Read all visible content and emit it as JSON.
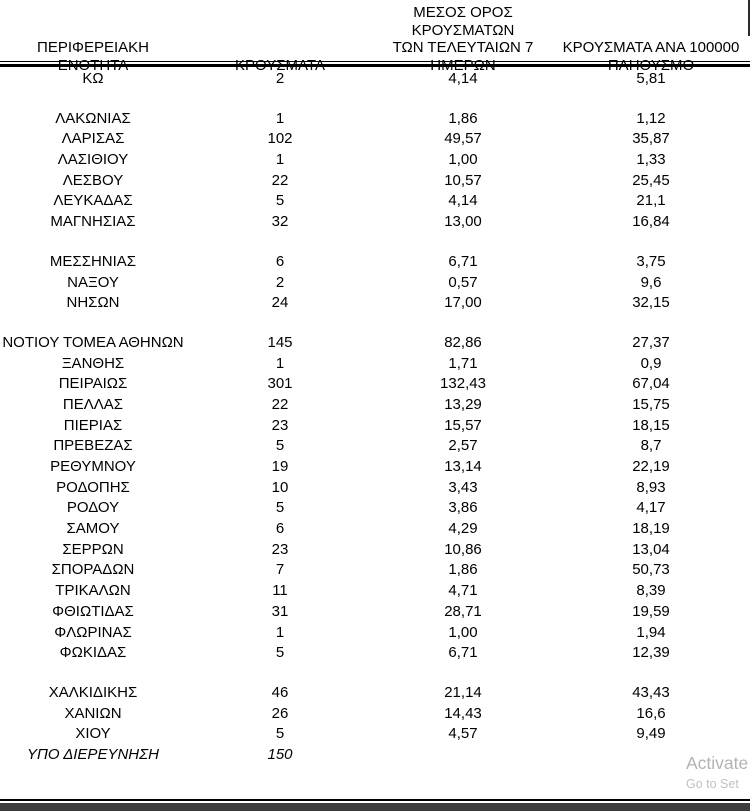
{
  "colors": {
    "text": "#000000",
    "rule": "#000000",
    "bottom_bar": "#3d3d3d",
    "watermark_primary": "#b3b3b3",
    "watermark_secondary": "#c1c1c1"
  },
  "table": {
    "headers": {
      "region": "ΠΕΡΙΦΕΡΕΙΑΚΗ ΕΝΟΤΗΤΑ",
      "cases": "ΚΡΟΥΣΜΑΤΑ",
      "avg7": "ΜΕΣΟΣ ΟΡΟΣ ΚΡΟΥΣΜΑΤΩΝ\nΤΩΝ ΤΕΛΕΥΤΑΙΩΝ 7\nΗΜΕΡΩΝ",
      "per100k": "ΚΡΟΥΣΜΑΤΑ ΑΝΑ 100000\nΠΛΗΘΥΣΜΟ"
    },
    "groups": [
      {
        "rows": [
          {
            "region": "ΚΩ",
            "cases": "2",
            "avg7": "4,14",
            "per100k": "5,81"
          }
        ]
      },
      {
        "rows": [
          {
            "region": "ΛΑΚΩΝΙΑΣ",
            "cases": "1",
            "avg7": "1,86",
            "per100k": "1,12"
          },
          {
            "region": "ΛΑΡΙΣΑΣ",
            "cases": "102",
            "avg7": "49,57",
            "per100k": "35,87"
          },
          {
            "region": "ΛΑΣΙΘΙΟΥ",
            "cases": "1",
            "avg7": "1,00",
            "per100k": "1,33"
          },
          {
            "region": "ΛΕΣΒΟΥ",
            "cases": "22",
            "avg7": "10,57",
            "per100k": "25,45"
          },
          {
            "region": "ΛΕΥΚΑΔΑΣ",
            "cases": "5",
            "avg7": "4,14",
            "per100k": "21,1"
          },
          {
            "region": "ΜΑΓΝΗΣΙΑΣ",
            "cases": "32",
            "avg7": "13,00",
            "per100k": "16,84"
          }
        ]
      },
      {
        "rows": [
          {
            "region": "ΜΕΣΣΗΝΙΑΣ",
            "cases": "6",
            "avg7": "6,71",
            "per100k": "3,75"
          },
          {
            "region": "ΝΑΞΟΥ",
            "cases": "2",
            "avg7": "0,57",
            "per100k": "9,6"
          },
          {
            "region": "ΝΗΣΩΝ",
            "cases": "24",
            "avg7": "17,00",
            "per100k": "32,15"
          }
        ]
      },
      {
        "rows": [
          {
            "region": "ΝΟΤΙΟΥ ΤΟΜΕΑ ΑΘΗΝΩΝ",
            "cases": "145",
            "avg7": "82,86",
            "per100k": "27,37"
          },
          {
            "region": "ΞΑΝΘΗΣ",
            "cases": "1",
            "avg7": "1,71",
            "per100k": "0,9"
          },
          {
            "region": "ΠΕΙΡΑΙΩΣ",
            "cases": "301",
            "avg7": "132,43",
            "per100k": "67,04"
          },
          {
            "region": "ΠΕΛΛΑΣ",
            "cases": "22",
            "avg7": "13,29",
            "per100k": "15,75"
          },
          {
            "region": "ΠΙΕΡΙΑΣ",
            "cases": "23",
            "avg7": "15,57",
            "per100k": "18,15"
          },
          {
            "region": "ΠΡΕΒΕΖΑΣ",
            "cases": "5",
            "avg7": "2,57",
            "per100k": "8,7"
          },
          {
            "region": "ΡΕΘΥΜΝΟΥ",
            "cases": "19",
            "avg7": "13,14",
            "per100k": "22,19"
          },
          {
            "region": "ΡΟΔΟΠΗΣ",
            "cases": "10",
            "avg7": "3,43",
            "per100k": "8,93"
          },
          {
            "region": "ΡΟΔΟΥ",
            "cases": "5",
            "avg7": "3,86",
            "per100k": "4,17"
          },
          {
            "region": "ΣΑΜΟΥ",
            "cases": "6",
            "avg7": "4,29",
            "per100k": "18,19"
          },
          {
            "region": "ΣΕΡΡΩΝ",
            "cases": "23",
            "avg7": "10,86",
            "per100k": "13,04"
          },
          {
            "region": "ΣΠΟΡΑΔΩΝ",
            "cases": "7",
            "avg7": "1,86",
            "per100k": "50,73"
          },
          {
            "region": "ΤΡΙΚΑΛΩΝ",
            "cases": "11",
            "avg7": "4,71",
            "per100k": "8,39"
          },
          {
            "region": "ΦΘΙΩΤΙΔΑΣ",
            "cases": "31",
            "avg7": "28,71",
            "per100k": "19,59"
          },
          {
            "region": "ΦΛΩΡΙΝΑΣ",
            "cases": "1",
            "avg7": "1,00",
            "per100k": "1,94"
          },
          {
            "region": "ΦΩΚΙΔΑΣ",
            "cases": "5",
            "avg7": "6,71",
            "per100k": "12,39"
          }
        ]
      },
      {
        "rows": [
          {
            "region": "ΧΑΛΚΙΔΙΚΗΣ",
            "cases": "46",
            "avg7": "21,14",
            "per100k": "43,43"
          },
          {
            "region": "ΧΑΝΙΩΝ",
            "cases": "26",
            "avg7": "14,43",
            "per100k": "16,6"
          },
          {
            "region": "ΧΙΟΥ",
            "cases": "5",
            "avg7": "4,57",
            "per100k": "9,49"
          },
          {
            "region": "ΥΠΟ ΔΙΕΡΕΥΝΗΣΗ",
            "cases": "150",
            "avg7": "",
            "per100k": "",
            "italic": true
          }
        ]
      }
    ]
  },
  "watermark": {
    "line1": "Activate",
    "line2": "Go to Set"
  }
}
